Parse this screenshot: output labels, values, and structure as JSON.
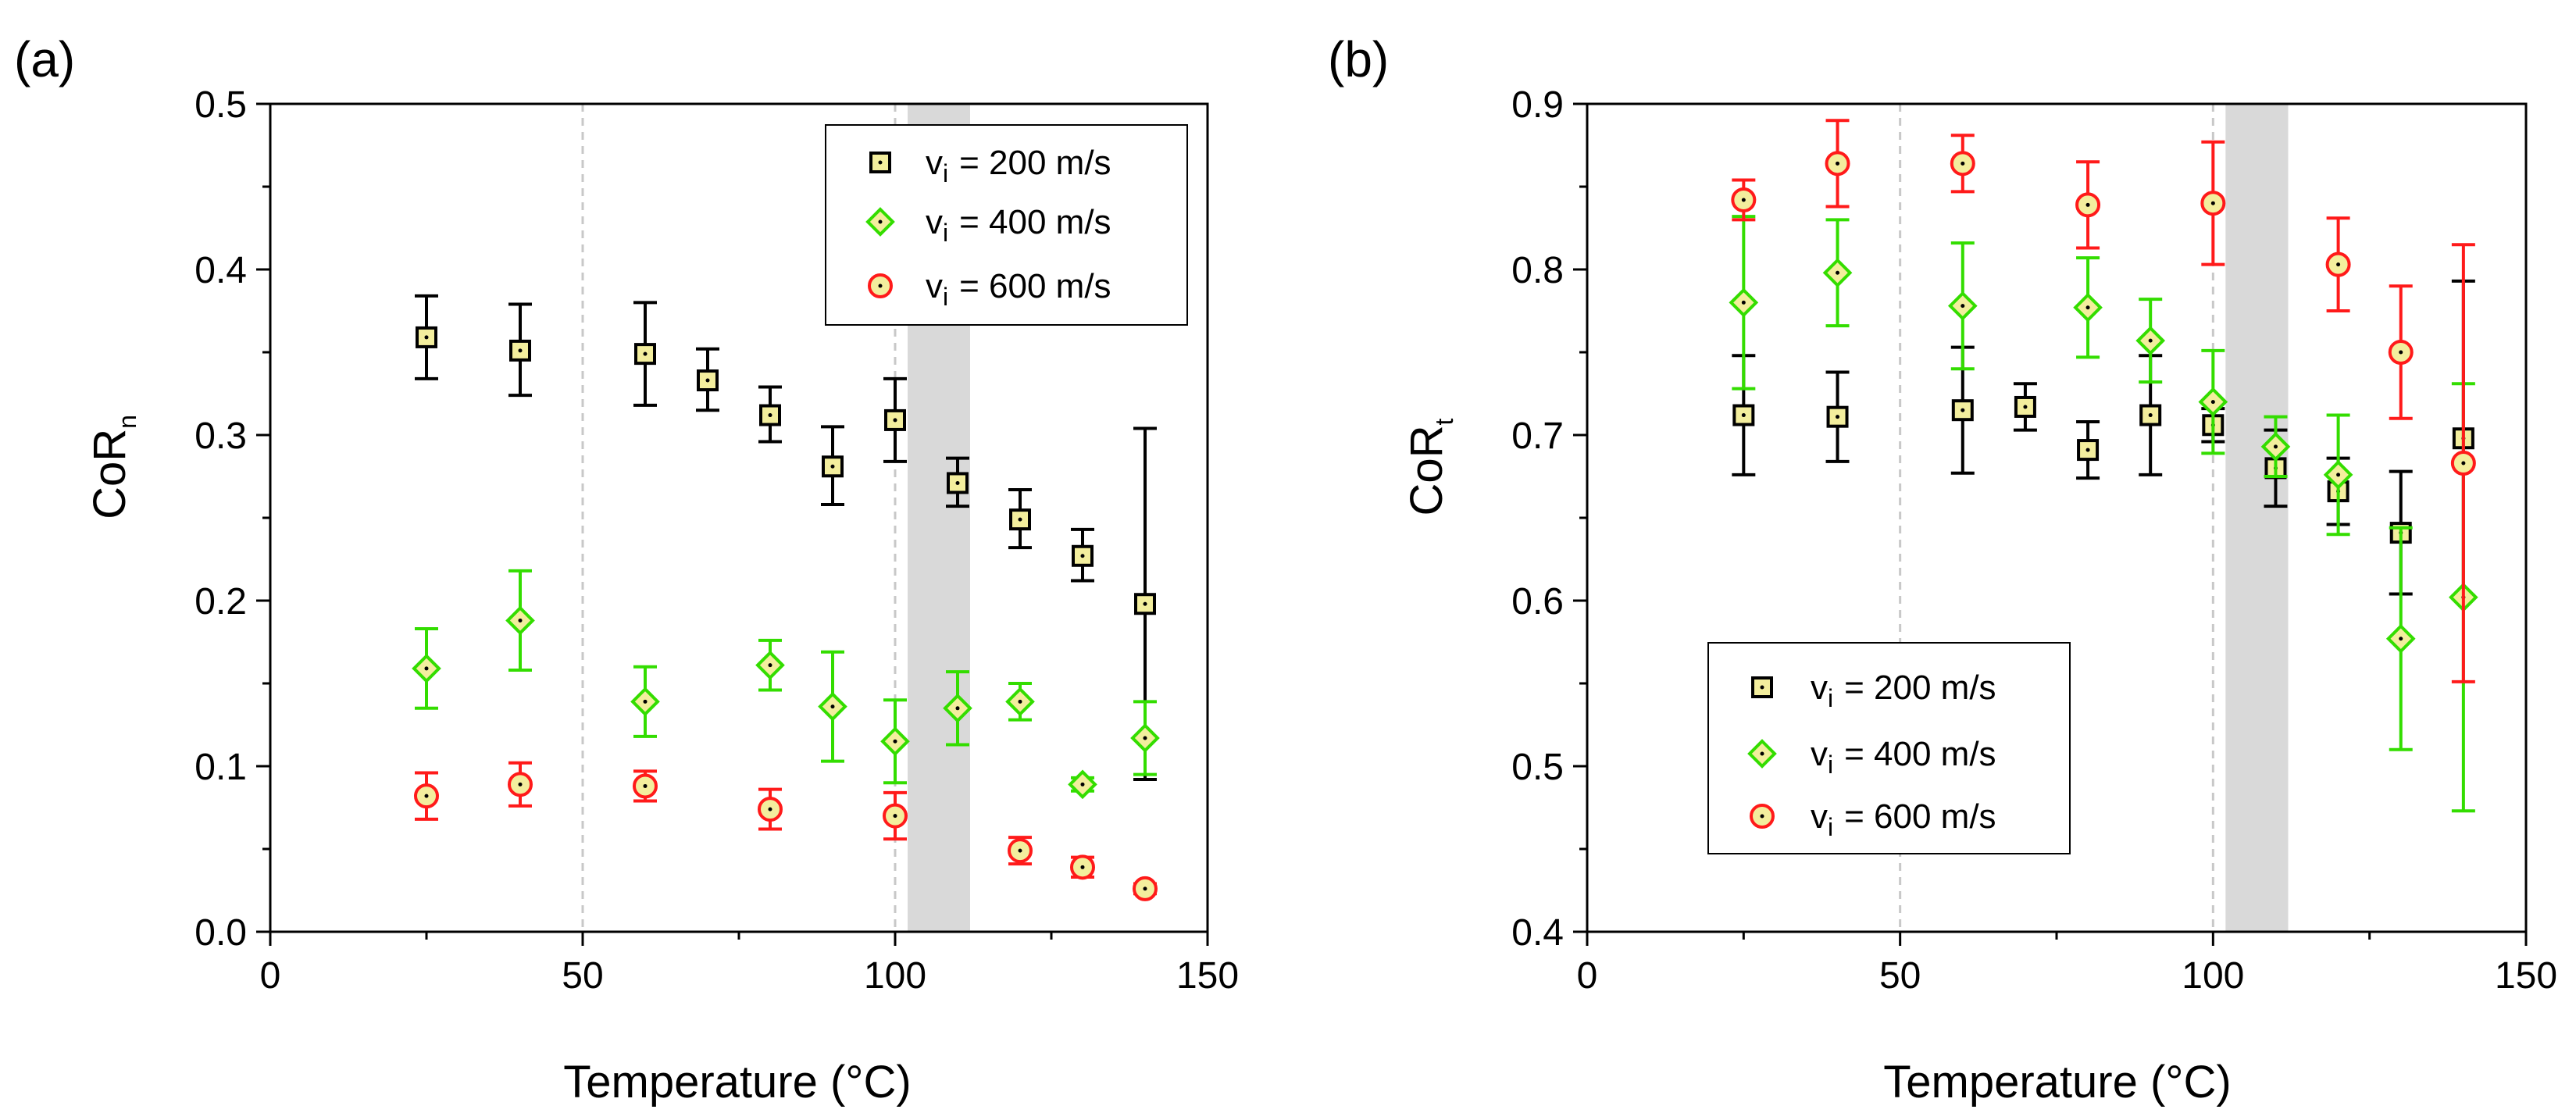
{
  "figure": {
    "chart_data": [
      {
        "type": "scatter",
        "panel": "(a)",
        "xlabel": "Temperature (°C)",
        "ylabel": "CoR",
        "ylabel_sub": "n",
        "xlim": [
          0,
          150
        ],
        "ylim": [
          0,
          0.5
        ],
        "xticks": [
          "0",
          "50",
          "100",
          "150"
        ],
        "yticks": [
          "0.0",
          "0.1",
          "0.2",
          "0.3",
          "0.4",
          "0.5"
        ],
        "xtick_values": [
          0,
          50,
          100,
          150
        ],
        "ytick_values": [
          0,
          0.1,
          0.2,
          0.3,
          0.4,
          0.5
        ],
        "reference_lines_x": [
          50,
          100
        ],
        "shaded_x_range": [
          102,
          112
        ],
        "legend_position": "top-right",
        "series": [
          {
            "name": "200 m/s",
            "legend_sym": "v",
            "legend_sub": "i",
            "legend_value": "= 200 m/s",
            "marker": "square",
            "marker_fill": "#f3ee9d",
            "marker_edge": "#000000",
            "error_color": "#000000",
            "x": [
              25,
              40,
              60,
              70,
              80,
              90,
              100,
              110,
              120,
              130,
              140
            ],
            "y": [
              0.359,
              0.351,
              0.349,
              0.333,
              0.312,
              0.281,
              0.309,
              0.271,
              0.249,
              0.227,
              0.198
            ],
            "err_low": [
              0.025,
              0.027,
              0.031,
              0.018,
              0.016,
              0.023,
              0.025,
              0.014,
              0.017,
              0.015,
              0.106
            ],
            "err_high": [
              0.025,
              0.028,
              0.031,
              0.019,
              0.017,
              0.024,
              0.025,
              0.015,
              0.018,
              0.016,
              0.106
            ]
          },
          {
            "name": "400 m/s",
            "legend_sym": "v",
            "legend_sub": "i",
            "legend_value": "= 400 m/s",
            "marker": "diamond",
            "marker_fill": "#f3ee9d",
            "marker_edge": "#33dd00",
            "error_color": "#33dd00",
            "x": [
              25,
              40,
              60,
              80,
              90,
              100,
              110,
              120,
              130,
              140
            ],
            "y": [
              0.159,
              0.188,
              0.139,
              0.161,
              0.136,
              0.115,
              0.135,
              0.139,
              0.089,
              0.117
            ],
            "err_low": [
              0.024,
              0.03,
              0.021,
              0.015,
              0.033,
              0.025,
              0.022,
              0.011,
              0.004,
              0.022
            ],
            "err_high": [
              0.024,
              0.03,
              0.021,
              0.015,
              0.033,
              0.025,
              0.022,
              0.011,
              0.004,
              0.022
            ]
          },
          {
            "name": "600 m/s",
            "legend_sym": "v",
            "legend_sub": "i",
            "legend_value": "= 600 m/s",
            "marker": "circle",
            "marker_fill": "#f3ee9d",
            "marker_edge": "#ff1a1a",
            "error_color": "#ff1a1a",
            "x": [
              25,
              40,
              60,
              80,
              100,
              120,
              130,
              140
            ],
            "y": [
              0.082,
              0.089,
              0.088,
              0.074,
              0.07,
              0.049,
              0.039,
              0.026
            ],
            "err_low": [
              0.014,
              0.013,
              0.009,
              0.012,
              0.014,
              0.008,
              0.006,
              0.003
            ],
            "err_high": [
              0.014,
              0.013,
              0.009,
              0.012,
              0.014,
              0.008,
              0.006,
              0.003
            ]
          }
        ]
      },
      {
        "type": "scatter",
        "panel": "(b)",
        "xlabel": "Temperature (°C)",
        "ylabel": "CoR",
        "ylabel_sub": "t",
        "xlim": [
          0,
          150
        ],
        "ylim": [
          0.4,
          0.9
        ],
        "xticks": [
          "0",
          "50",
          "100",
          "150"
        ],
        "yticks": [
          "0.4",
          "0.5",
          "0.6",
          "0.7",
          "0.8",
          "0.9"
        ],
        "xtick_values": [
          0,
          50,
          100,
          150
        ],
        "ytick_values": [
          0.4,
          0.5,
          0.6,
          0.7,
          0.8,
          0.9
        ],
        "reference_lines_x": [
          50,
          100
        ],
        "shaded_x_range": [
          102,
          112
        ],
        "legend_position": "bottom-left",
        "series": [
          {
            "name": "200 m/s",
            "legend_sym": "v",
            "legend_sub": "i",
            "legend_value": "= 200 m/s",
            "marker": "square",
            "marker_fill": "#f3ee9d",
            "marker_edge": "#000000",
            "error_color": "#000000",
            "x": [
              25,
              40,
              60,
              70,
              80,
              90,
              100,
              110,
              120,
              130,
              140
            ],
            "y": [
              0.712,
              0.711,
              0.715,
              0.717,
              0.691,
              0.712,
              0.706,
              0.68,
              0.666,
              0.641,
              0.698
            ],
            "err_low": [
              0.036,
              0.027,
              0.038,
              0.014,
              0.017,
              0.036,
              0.01,
              0.023,
              0.02,
              0.037,
              0.095
            ],
            "err_high": [
              0.036,
              0.027,
              0.038,
              0.014,
              0.017,
              0.036,
              0.01,
              0.023,
              0.02,
              0.037,
              0.095
            ]
          },
          {
            "name": "400 m/s",
            "legend_sym": "v",
            "legend_sub": "i",
            "legend_value": "= 400 m/s",
            "marker": "diamond",
            "marker_fill": "#f3ee9d",
            "marker_edge": "#33dd00",
            "error_color": "#33dd00",
            "x": [
              25,
              40,
              60,
              80,
              90,
              100,
              110,
              120,
              130,
              140
            ],
            "y": [
              0.78,
              0.798,
              0.778,
              0.777,
              0.757,
              0.72,
              0.693,
              0.676,
              0.577,
              0.602
            ],
            "err_low": [
              0.052,
              0.032,
              0.038,
              0.03,
              0.025,
              0.031,
              0.018,
              0.036,
              0.067,
              0.129
            ],
            "err_high": [
              0.052,
              0.032,
              0.038,
              0.03,
              0.025,
              0.031,
              0.018,
              0.036,
              0.067,
              0.129
            ]
          },
          {
            "name": "600 m/s",
            "legend_sym": "v",
            "legend_sub": "i",
            "legend_value": "= 600 m/s",
            "marker": "circle",
            "marker_fill": "#f3ee9d",
            "marker_edge": "#ff1a1a",
            "error_color": "#ff1a1a",
            "x": [
              25,
              40,
              60,
              80,
              100,
              120,
              130,
              140
            ],
            "y": [
              0.842,
              0.864,
              0.864,
              0.839,
              0.84,
              0.803,
              0.75,
              0.683
            ],
            "err_low": [
              0.012,
              0.026,
              0.017,
              0.026,
              0.037,
              0.028,
              0.04,
              0.132
            ],
            "err_high": [
              0.012,
              0.026,
              0.017,
              0.026,
              0.037,
              0.028,
              0.04,
              0.132
            ]
          }
        ]
      }
    ]
  }
}
